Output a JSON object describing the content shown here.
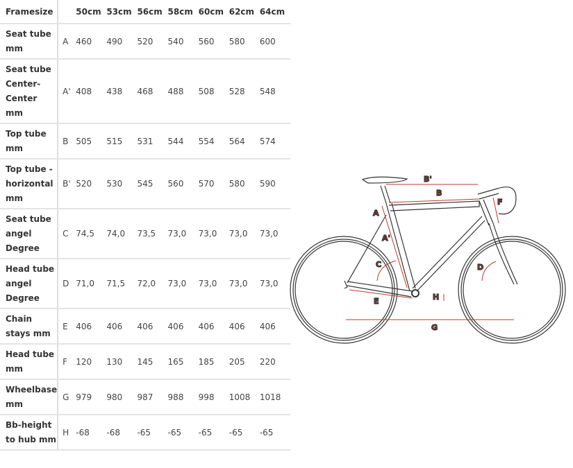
{
  "header": {
    "label": "Framesize",
    "sizes": [
      "50cm",
      "53cm",
      "56cm",
      "58cm",
      "60cm",
      "62cm",
      "64cm"
    ]
  },
  "rows": [
    {
      "label": [
        "Seat tube",
        "mm"
      ],
      "letter": "A",
      "values": [
        "460",
        "490",
        "520",
        "540",
        "560",
        "580",
        "600"
      ]
    },
    {
      "label": [
        "Seat tube",
        "Center-",
        "Center",
        "mm"
      ],
      "letter": "A'",
      "values": [
        "408",
        "438",
        "468",
        "488",
        "508",
        "528",
        "548"
      ]
    },
    {
      "label": [
        "Top tube",
        "mm"
      ],
      "letter": "B",
      "values": [
        "505",
        "515",
        "531",
        "544",
        "554",
        "564",
        "574"
      ]
    },
    {
      "label": [
        "Top tube -",
        "horizontal",
        "mm"
      ],
      "letter": "B'",
      "values": [
        "520",
        "530",
        "545",
        "560",
        "570",
        "580",
        "590"
      ]
    },
    {
      "label": [
        "Seat tube",
        "angel",
        "Degree"
      ],
      "letter": "C",
      "values": [
        "74,5",
        "74,0",
        "73,5",
        "73,0",
        "73,0",
        "73,0",
        "73,0"
      ]
    },
    {
      "label": [
        "Head tube",
        "angel",
        "Degree"
      ],
      "letter": "D",
      "values": [
        "71,0",
        "71,5",
        "72,0",
        "73,0",
        "73,0",
        "73,0",
        "73,0"
      ]
    },
    {
      "label": [
        "Chain",
        "stays mm"
      ],
      "letter": "E",
      "values": [
        "406",
        "406",
        "406",
        "406",
        "406",
        "406",
        "406"
      ]
    },
    {
      "label": [
        "Head tube",
        "mm"
      ],
      "letter": "F",
      "values": [
        "120",
        "130",
        "145",
        "165",
        "185",
        "205",
        "220"
      ]
    },
    {
      "label": [
        "Wheelbase",
        "mm"
      ],
      "letter": "G",
      "values": [
        "979",
        "980",
        "987",
        "988",
        "998",
        "1008",
        "1018"
      ]
    },
    {
      "label": [
        "Bb-height",
        "to hub mm"
      ],
      "letter": "H",
      "values": [
        "-68",
        "-68",
        "-65",
        "-65",
        "-65",
        "-65",
        "-65"
      ]
    }
  ],
  "diagram": {
    "labels": {
      "A": "A",
      "A2": "A'",
      "B": "B",
      "B2": "B'",
      "C": "C",
      "D": "D",
      "E": "E",
      "F": "F",
      "G": "G",
      "H": "H"
    },
    "accent": "#c0392b"
  }
}
